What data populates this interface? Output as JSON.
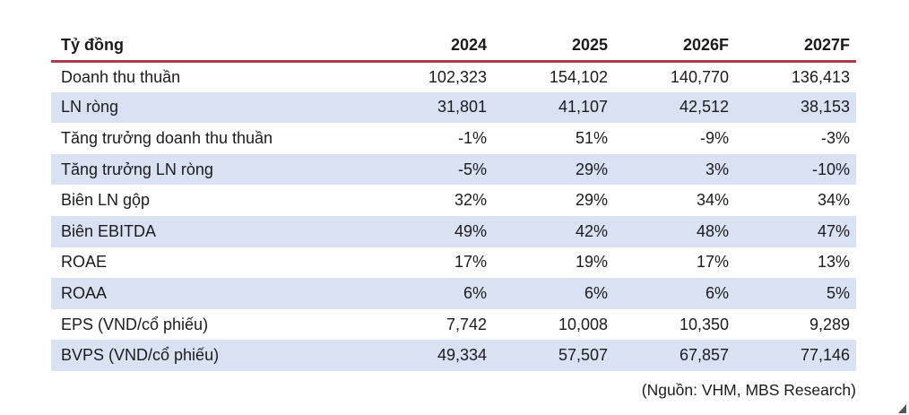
{
  "table": {
    "unit_label": "Tỷ đồng",
    "columns": [
      "2024",
      "2025",
      "2026F",
      "2027F"
    ],
    "rows": [
      {
        "label": "Doanh thu thuần",
        "values": [
          "102,323",
          "154,102",
          "140,770",
          "136,413"
        ],
        "highlight": false
      },
      {
        "label": "LN ròng",
        "values": [
          "31,801",
          "41,107",
          "42,512",
          "38,153"
        ],
        "highlight": true
      },
      {
        "label": "Tăng trưởng doanh thu thuần",
        "values": [
          "-1%",
          "51%",
          "-9%",
          "-3%"
        ],
        "highlight": false
      },
      {
        "label": "Tăng trưởng LN ròng",
        "values": [
          "-5%",
          "29%",
          "3%",
          "-10%"
        ],
        "highlight": true
      },
      {
        "label": "Biên LN gộp",
        "values": [
          "32%",
          "29%",
          "34%",
          "34%"
        ],
        "highlight": false
      },
      {
        "label": "Biên EBITDA",
        "values": [
          "49%",
          "42%",
          "48%",
          "47%"
        ],
        "highlight": true
      },
      {
        "label": "ROAE",
        "values": [
          "17%",
          "19%",
          "17%",
          "13%"
        ],
        "highlight": false
      },
      {
        "label": "ROAA",
        "values": [
          "6%",
          "6%",
          "6%",
          "5%"
        ],
        "highlight": true
      },
      {
        "label": "EPS (VND/cổ phiếu)",
        "values": [
          "7,742",
          "10,008",
          "10,350",
          "9,289"
        ],
        "highlight": false
      },
      {
        "label": "BVPS (VND/cổ phiếu)",
        "values": [
          "49,334",
          "57,507",
          "67,857",
          "77,146"
        ],
        "highlight": true
      }
    ],
    "source": "(Nguồn: VHM, MBS Research)"
  },
  "colors": {
    "accent_line": "#B03A4E",
    "row_highlight": "#D9E2F2",
    "text": "#1B1B1B"
  }
}
